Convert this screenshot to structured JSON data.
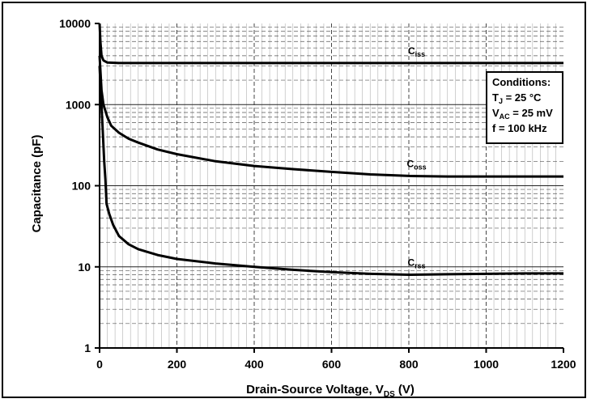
{
  "chart_data": {
    "type": "line",
    "title": "",
    "xlabel": {
      "main": "Drain-Source Voltage, V",
      "sub": "DS",
      "unit": " (V)"
    },
    "ylabel": "Capacitance (pF)",
    "xlim": [
      0,
      1200
    ],
    "ylim": [
      1,
      10000
    ],
    "yscale": "log",
    "grid": true,
    "x_ticks": [
      "0",
      "200",
      "400",
      "600",
      "800",
      "1000",
      "1200"
    ],
    "y_ticks": [
      "1",
      "10",
      "100",
      "1000",
      "10000"
    ],
    "series": [
      {
        "name": "Ciss",
        "label": {
          "main": "C",
          "sub": "iss"
        },
        "points": [
          [
            0,
            10000
          ],
          [
            2,
            6000
          ],
          [
            5,
            4000
          ],
          [
            10,
            3500
          ],
          [
            20,
            3300
          ],
          [
            50,
            3250
          ],
          [
            100,
            3250
          ],
          [
            200,
            3250
          ],
          [
            400,
            3250
          ],
          [
            600,
            3250
          ],
          [
            800,
            3250
          ],
          [
            1000,
            3250
          ],
          [
            1200,
            3250
          ]
        ]
      },
      {
        "name": "Coss",
        "label": {
          "main": "C",
          "sub": "oss"
        },
        "points": [
          [
            0,
            4000
          ],
          [
            5,
            1500
          ],
          [
            10,
            1000
          ],
          [
            20,
            700
          ],
          [
            30,
            550
          ],
          [
            50,
            450
          ],
          [
            75,
            380
          ],
          [
            100,
            340
          ],
          [
            150,
            280
          ],
          [
            200,
            245
          ],
          [
            300,
            200
          ],
          [
            400,
            175
          ],
          [
            500,
            160
          ],
          [
            600,
            148
          ],
          [
            700,
            138
          ],
          [
            800,
            132
          ],
          [
            900,
            130
          ],
          [
            1000,
            130
          ],
          [
            1200,
            130
          ]
        ]
      },
      {
        "name": "Crss",
        "label": {
          "main": "C",
          "sub": "rss"
        },
        "points": [
          [
            0,
            3000
          ],
          [
            3,
            1500
          ],
          [
            8,
            500
          ],
          [
            12,
            200
          ],
          [
            15,
            120
          ],
          [
            18,
            60
          ],
          [
            25,
            45
          ],
          [
            35,
            33
          ],
          [
            50,
            24
          ],
          [
            75,
            19
          ],
          [
            100,
            16.5
          ],
          [
            150,
            14
          ],
          [
            200,
            12.5
          ],
          [
            300,
            11
          ],
          [
            400,
            10
          ],
          [
            500,
            9.2
          ],
          [
            600,
            8.6
          ],
          [
            700,
            8.2
          ],
          [
            800,
            8.0
          ],
          [
            900,
            8.1
          ],
          [
            1000,
            8.2
          ],
          [
            1100,
            8.3
          ],
          [
            1200,
            8.3
          ]
        ]
      }
    ],
    "annotation": {
      "lines": [
        {
          "main": "Conditions:",
          "sub": "",
          "tail": ""
        },
        {
          "main": "T",
          "sub": "J",
          "tail": " = 25 °C"
        },
        {
          "main": "V",
          "sub": "AC",
          "tail": " = 25 mV"
        },
        {
          "main": "f = 100 kHz",
          "sub": "",
          "tail": ""
        }
      ]
    }
  }
}
